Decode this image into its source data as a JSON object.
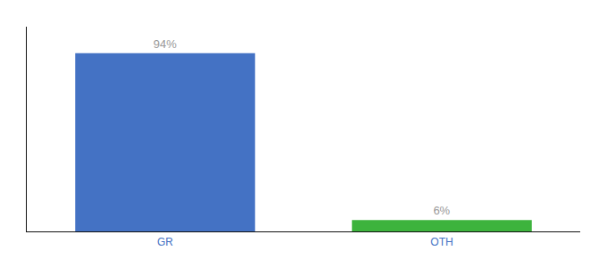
{
  "chart_data": {
    "type": "bar",
    "categories": [
      "GR",
      "OTH"
    ],
    "values": [
      94,
      6
    ],
    "value_labels": [
      "94%",
      "6%"
    ],
    "colors": [
      "#4472c4",
      "#3db33d"
    ],
    "ylim": [
      0,
      108
    ],
    "data_labels": true,
    "tick_labels": "x",
    "grid": false
  }
}
